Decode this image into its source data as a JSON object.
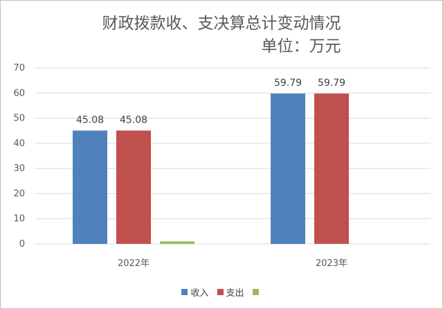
{
  "chart_data": {
    "type": "bar",
    "title": "财政拨款收、支决算总计变动情况",
    "subtitle": "单位：万元",
    "categories": [
      "2022年",
      "2023年"
    ],
    "series": [
      {
        "name": "收入",
        "values": [
          45.08,
          59.79
        ],
        "color": "#4f81bd",
        "labels": [
          "45.08",
          "59.79"
        ]
      },
      {
        "name": "支出",
        "values": [
          45.08,
          59.79
        ],
        "color": "#c0504d",
        "labels": [
          "45.08",
          "59.79"
        ]
      },
      {
        "name": "",
        "values": [
          1,
          0
        ],
        "color": "#9bbb59",
        "labels": [
          "",
          ""
        ]
      }
    ],
    "ylim": [
      0,
      70
    ],
    "yticks": [
      "0",
      "10",
      "20",
      "30",
      "40",
      "50",
      "60",
      "70"
    ],
    "grid": true,
    "legend_position": "bottom",
    "xlabel": "",
    "ylabel": ""
  }
}
